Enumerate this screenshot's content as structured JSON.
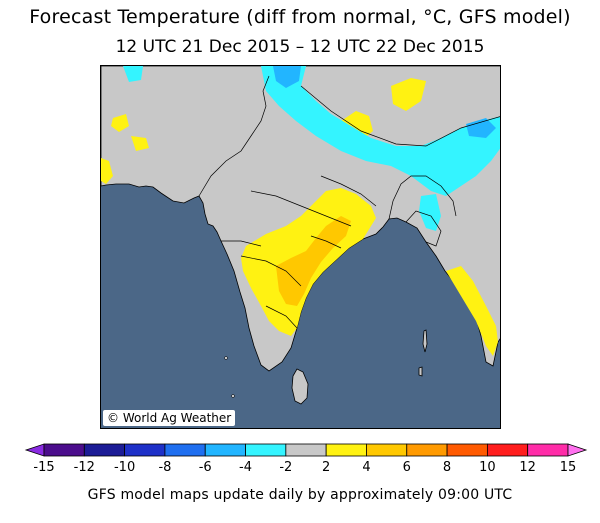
{
  "header": {
    "title": "Forecast Temperature (diff from normal, °C, GFS model)",
    "subtitle": "12 UTC 21 Dec 2015 – 12 UTC 22 Dec 2015"
  },
  "map": {
    "credit": "World Ag Weather",
    "credit_symbol": "©",
    "colors": {
      "ocean": "#4b6787",
      "land": "#c8c8c8",
      "border": "#000000"
    }
  },
  "colorbar": {
    "tick_labels": [
      "-15",
      "-12",
      "-10",
      "-8",
      "-6",
      "-4",
      "-2",
      "2",
      "4",
      "6",
      "8",
      "10",
      "12",
      "15"
    ],
    "bins": [
      {
        "color": "#8a2be2"
      },
      {
        "color": "#4b0d8c"
      },
      {
        "color": "#1c1c96"
      },
      {
        "color": "#1e30c8"
      },
      {
        "color": "#1f6ff0"
      },
      {
        "color": "#22b5ff"
      },
      {
        "color": "#34f4ff"
      },
      {
        "color": "#c8c8c8"
      },
      {
        "color": "#fff212"
      },
      {
        "color": "#ffc800"
      },
      {
        "color": "#ff9a00"
      },
      {
        "color": "#ff5a00"
      },
      {
        "color": "#ff1e1e"
      },
      {
        "color": "#ff2ca8"
      },
      {
        "color": "#ff70ee"
      }
    ]
  },
  "footer": {
    "text": "GFS model maps update daily by approximately 09:00 UTC"
  }
}
